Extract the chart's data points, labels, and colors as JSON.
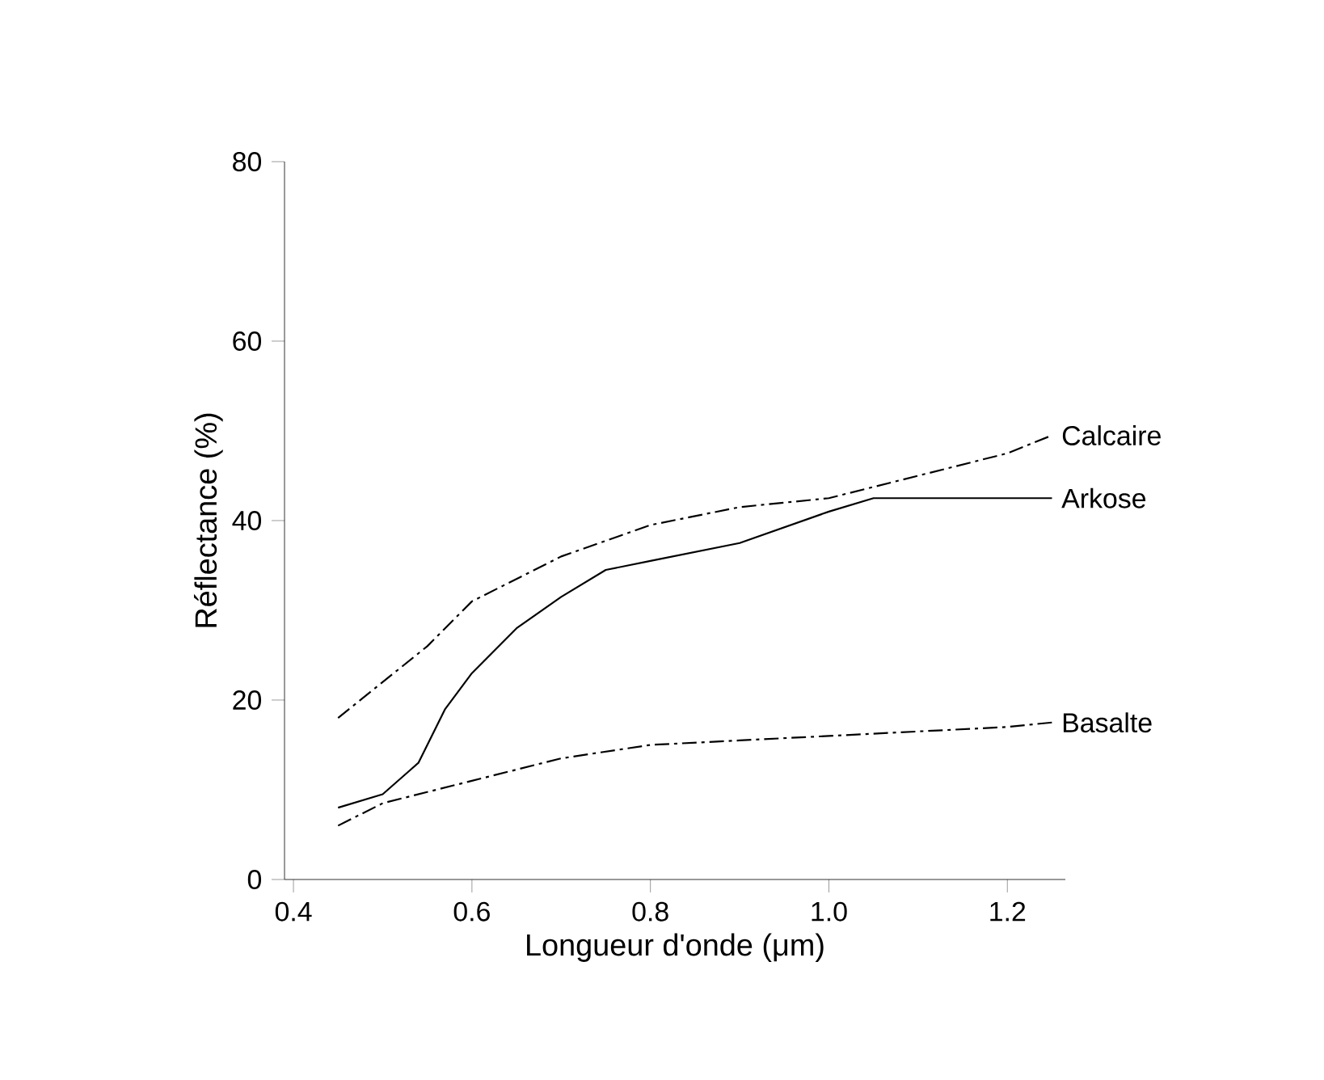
{
  "chart_data": {
    "type": "line",
    "xlabel": "Longueur d'onde   (μm)",
    "ylabel": "Réflectance (%)",
    "xlim": [
      0.39,
      1.265
    ],
    "ylim": [
      0,
      80
    ],
    "xticks": [
      {
        "value": 0.4,
        "label": "0.4"
      },
      {
        "value": 0.6,
        "label": "0.6"
      },
      {
        "value": 0.8,
        "label": "0.8"
      },
      {
        "value": 1.0,
        "label": "1.0"
      },
      {
        "value": 1.2,
        "label": "1.2"
      }
    ],
    "yticks": [
      0,
      20,
      40,
      60,
      80
    ],
    "series": [
      {
        "name": "Calcaire",
        "color": "#000000",
        "line_style": "dashed",
        "x": [
          0.45,
          0.5,
          0.55,
          0.6,
          0.7,
          0.8,
          0.9,
          1.0,
          1.1,
          1.2,
          1.25
        ],
        "values": [
          18,
          22,
          26,
          31,
          36,
          39.5,
          41.5,
          42.5,
          45,
          47.5,
          49.5
        ]
      },
      {
        "name": "Arkose",
        "color": "#000000",
        "line_style": "solid",
        "x": [
          0.45,
          0.5,
          0.54,
          0.57,
          0.6,
          0.65,
          0.7,
          0.75,
          0.8,
          0.9,
          1.0,
          1.05,
          1.25
        ],
        "values": [
          8,
          9.5,
          13,
          19,
          23,
          28,
          31.5,
          34.5,
          35.5,
          37.5,
          41,
          42.5,
          42.5
        ]
      },
      {
        "name": "Basalte",
        "color": "#000000",
        "line_style": "dashed",
        "x": [
          0.45,
          0.5,
          0.6,
          0.7,
          0.8,
          0.9,
          1.0,
          1.1,
          1.2,
          1.25
        ],
        "values": [
          6,
          8.5,
          11,
          13.5,
          15,
          15.5,
          16,
          16.5,
          17,
          17.5
        ]
      }
    ]
  }
}
